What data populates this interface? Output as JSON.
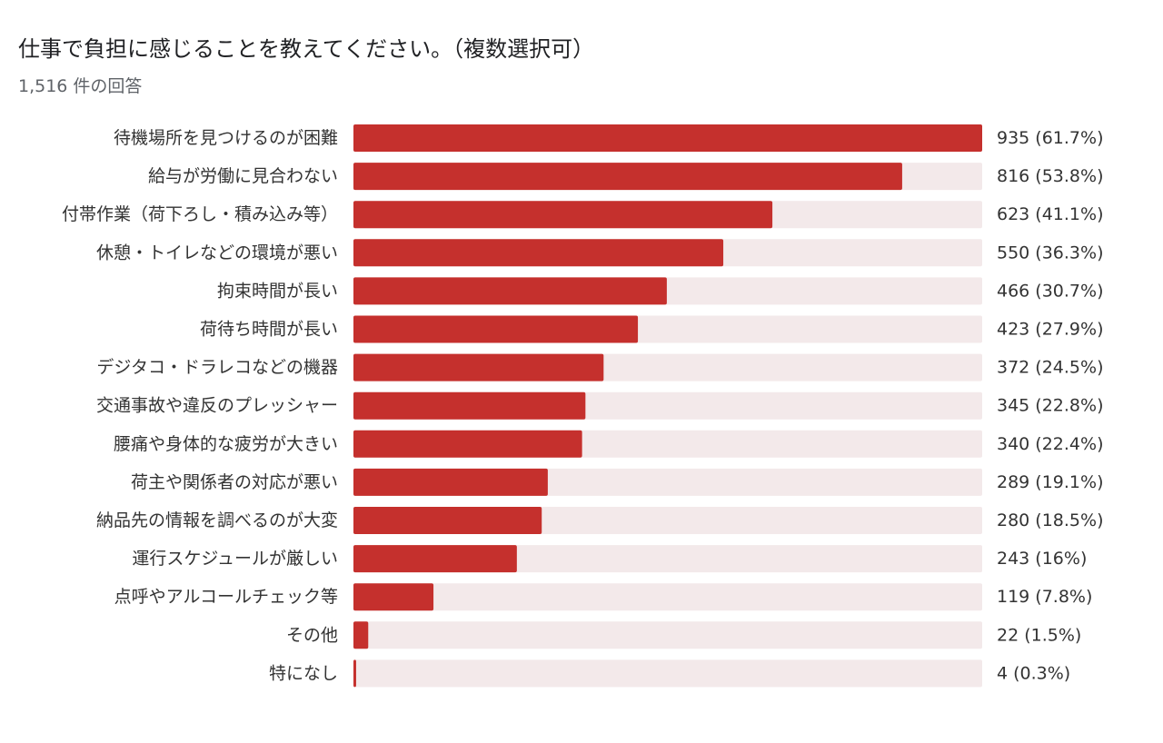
{
  "header": {
    "title": "仕事で負担に感じることを教えてください。（複数選択可）",
    "response_count": "1,516 件の回答"
  },
  "colors": {
    "bar": "#c5302d",
    "track": "#f3e9ea",
    "label": "#333333"
  },
  "chart_data": {
    "type": "bar",
    "orientation": "horizontal",
    "title": "仕事で負担に感じることを教えてください。（複数選択可）",
    "subtitle": "1,516 件の回答",
    "xlim": [
      0,
      935
    ],
    "categories": [
      "待機場所を見つけるのが困難",
      "給与が労働に見合わない",
      "付帯作業（荷下ろし・積み込み等）",
      "休憩・トイレなどの環境が悪い",
      "拘束時間が長い",
      "荷待ち時間が長い",
      "デジタコ・ドラレコなどの機器",
      "交通事故や違反のプレッシャー",
      "腰痛や身体的な疲労が大きい",
      "荷主や関係者の対応が悪い",
      "納品先の情報を調べるのが大変",
      "運行スケジュールが厳しい",
      "点呼やアルコールチェック等",
      "その他",
      "特になし"
    ],
    "values": [
      935,
      816,
      623,
      550,
      466,
      423,
      372,
      345,
      340,
      289,
      280,
      243,
      119,
      22,
      4
    ],
    "value_labels": [
      "935 (61.7%)",
      "816 (53.8%)",
      "623 (41.1%)",
      "550 (36.3%)",
      "466 (30.7%)",
      "423 (27.9%)",
      "372 (24.5%)",
      "345 (22.8%)",
      "340 (22.4%)",
      "289 (19.1%)",
      "280 (18.5%)",
      "243 (16%)",
      "119 (7.8%)",
      "22 (1.5%)",
      "4 (0.3%)"
    ]
  }
}
